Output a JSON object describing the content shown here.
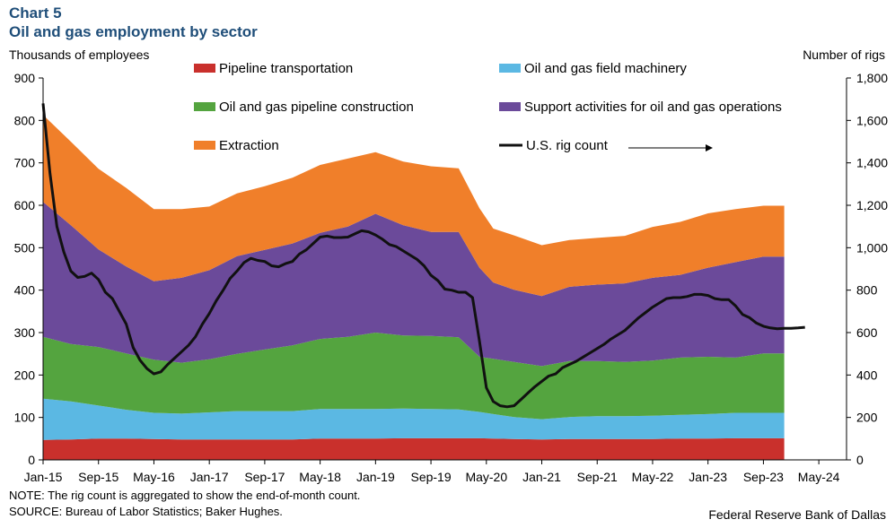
{
  "header": {
    "chart_number": "Chart 5",
    "title": "Oil and gas employment by sector"
  },
  "footer": {
    "note": "NOTE: The rig count is aggregated to show the end-of-month count.",
    "source": "SOURCE: Bureau of Labor Statistics; Baker Hughes.",
    "credit": "Federal Reserve Bank of Dallas"
  },
  "chart_data": {
    "type": "area",
    "stacked": true,
    "left_axis_label": "Thousands of employees",
    "right_axis_label": "Number of rigs",
    "ylim_left": [
      0,
      900
    ],
    "yticks_left": [
      "0",
      "100",
      "200",
      "300",
      "400",
      "500",
      "600",
      "700",
      "800",
      "900"
    ],
    "ylim_right": [
      0,
      1800
    ],
    "yticks_right": [
      "0",
      "200",
      "400",
      "600",
      "800",
      "1,000",
      "1,200",
      "1,400",
      "1,600",
      "1,800"
    ],
    "x_tick_labels": [
      "Jan-15",
      "Sep-15",
      "May-16",
      "Jan-17",
      "Sep-17",
      "May-18",
      "Jan-19",
      "Sep-19",
      "May-20",
      "Jan-21",
      "Sep-21",
      "May-22",
      "Jan-23",
      "Sep-23",
      "May-24"
    ],
    "months": [
      "Jan-15",
      "May-15",
      "Sep-15",
      "Jan-16",
      "May-16",
      "Sep-16",
      "Jan-17",
      "May-17",
      "Sep-17",
      "Jan-18",
      "May-18",
      "Sep-18",
      "Jan-19",
      "May-19",
      "Sep-19",
      "Jan-20",
      "Apr-20",
      "Jun-20",
      "Sep-20",
      "Jan-21",
      "May-21",
      "Sep-21",
      "Jan-22",
      "May-22",
      "Sep-22",
      "Jan-23",
      "May-23",
      "Sep-23",
      "Dec-23"
    ],
    "series": [
      {
        "name": "Pipeline transportation",
        "color": "#c9302c",
        "values": [
          47,
          48,
          50,
          50,
          49,
          48,
          48,
          48,
          48,
          48,
          50,
          50,
          50,
          51,
          51,
          51,
          51,
          50,
          49,
          48,
          49,
          49,
          49,
          49,
          50,
          50,
          51,
          51,
          51
        ]
      },
      {
        "name": "Oil and gas field machinery",
        "color": "#5bb8e3",
        "values": [
          97,
          90,
          78,
          68,
          62,
          61,
          64,
          67,
          67,
          67,
          70,
          70,
          70,
          70,
          69,
          68,
          62,
          58,
          52,
          48,
          52,
          54,
          54,
          55,
          56,
          58,
          60,
          60,
          60
        ]
      },
      {
        "name": "Oil and gas pipeline construction",
        "color": "#54a43f",
        "values": [
          146,
          135,
          138,
          133,
          125,
          120,
          125,
          135,
          145,
          155,
          165,
          170,
          180,
          172,
          172,
          170,
          130,
          130,
          130,
          125,
          132,
          130,
          128,
          130,
          135,
          135,
          130,
          140,
          140
        ]
      },
      {
        "name": "Support activities for oil and gas operations",
        "color": "#6b4a9a",
        "values": [
          318,
          280,
          230,
          205,
          185,
          200,
          210,
          230,
          235,
          240,
          250,
          260,
          280,
          260,
          245,
          248,
          210,
          180,
          170,
          165,
          175,
          180,
          185,
          195,
          195,
          210,
          225,
          228,
          228
        ]
      },
      {
        "name": "Extraction",
        "color": "#f07f2a",
        "values": [
          205,
          197,
          190,
          185,
          170,
          162,
          150,
          148,
          150,
          155,
          160,
          160,
          145,
          150,
          155,
          150,
          140,
          127,
          128,
          120,
          110,
          110,
          112,
          120,
          125,
          128,
          125,
          120,
          120
        ]
      }
    ],
    "line_series": {
      "name": "U.S. rig count",
      "color": "#111111",
      "axis": "right",
      "points": [
        [
          "Jan-15",
          1680
        ],
        [
          "Feb-15",
          1350
        ],
        [
          "Mar-15",
          1100
        ],
        [
          "Apr-15",
          980
        ],
        [
          "May-15",
          890
        ],
        [
          "Jun-15",
          860
        ],
        [
          "Jul-15",
          865
        ],
        [
          "Aug-15",
          880
        ],
        [
          "Sep-15",
          850
        ],
        [
          "Oct-15",
          790
        ],
        [
          "Nov-15",
          760
        ],
        [
          "Dec-15",
          700
        ],
        [
          "Jan-16",
          640
        ],
        [
          "Feb-16",
          530
        ],
        [
          "Mar-16",
          470
        ],
        [
          "Apr-16",
          430
        ],
        [
          "May-16",
          405
        ],
        [
          "Jun-16",
          415
        ],
        [
          "Jul-16",
          450
        ],
        [
          "Aug-16",
          480
        ],
        [
          "Sep-16",
          510
        ],
        [
          "Oct-16",
          540
        ],
        [
          "Nov-16",
          580
        ],
        [
          "Dec-16",
          640
        ],
        [
          "Jan-17",
          690
        ],
        [
          "Feb-17",
          750
        ],
        [
          "Mar-17",
          800
        ],
        [
          "Apr-17",
          855
        ],
        [
          "May-17",
          890
        ],
        [
          "Jun-17",
          930
        ],
        [
          "Jul-17",
          950
        ],
        [
          "Aug-17",
          940
        ],
        [
          "Sep-17",
          935
        ],
        [
          "Oct-17",
          915
        ],
        [
          "Nov-17",
          910
        ],
        [
          "Dec-17",
          925
        ],
        [
          "Jan-18",
          935
        ],
        [
          "Feb-18",
          970
        ],
        [
          "Mar-18",
          990
        ],
        [
          "Apr-18",
          1020
        ],
        [
          "May-18",
          1050
        ],
        [
          "Jun-18",
          1055
        ],
        [
          "Jul-18",
          1048
        ],
        [
          "Aug-18",
          1048
        ],
        [
          "Sep-18",
          1050
        ],
        [
          "Oct-18",
          1065
        ],
        [
          "Nov-18",
          1080
        ],
        [
          "Dec-18",
          1075
        ],
        [
          "Jan-19",
          1060
        ],
        [
          "Feb-19",
          1040
        ],
        [
          "Mar-19",
          1015
        ],
        [
          "Apr-19",
          1005
        ],
        [
          "May-19",
          985
        ],
        [
          "Jun-19",
          965
        ],
        [
          "Jul-19",
          945
        ],
        [
          "Aug-19",
          915
        ],
        [
          "Sep-19",
          870
        ],
        [
          "Oct-19",
          845
        ],
        [
          "Nov-19",
          805
        ],
        [
          "Dec-19",
          800
        ],
        [
          "Jan-20",
          790
        ],
        [
          "Feb-20",
          790
        ],
        [
          "Mar-20",
          765
        ],
        [
          "Apr-20",
          560
        ],
        [
          "May-20",
          340
        ],
        [
          "Jun-20",
          275
        ],
        [
          "Jul-20",
          255
        ],
        [
          "Aug-20",
          250
        ],
        [
          "Sep-20",
          255
        ],
        [
          "Oct-20",
          285
        ],
        [
          "Nov-20",
          315
        ],
        [
          "Dec-20",
          345
        ],
        [
          "Jan-21",
          370
        ],
        [
          "Feb-21",
          395
        ],
        [
          "Mar-21",
          405
        ],
        [
          "Apr-21",
          435
        ],
        [
          "May-21",
          450
        ],
        [
          "Jun-21",
          465
        ],
        [
          "Jul-21",
          485
        ],
        [
          "Aug-21",
          505
        ],
        [
          "Sep-21",
          525
        ],
        [
          "Oct-21",
          545
        ],
        [
          "Nov-21",
          570
        ],
        [
          "Dec-21",
          590
        ],
        [
          "Jan-22",
          610
        ],
        [
          "Feb-22",
          640
        ],
        [
          "Mar-22",
          670
        ],
        [
          "Apr-22",
          695
        ],
        [
          "May-22",
          720
        ],
        [
          "Jun-22",
          740
        ],
        [
          "Jul-22",
          760
        ],
        [
          "Aug-22",
          765
        ],
        [
          "Sep-22",
          765
        ],
        [
          "Oct-22",
          770
        ],
        [
          "Nov-22",
          780
        ],
        [
          "Dec-22",
          780
        ],
        [
          "Jan-23",
          775
        ],
        [
          "Feb-23",
          760
        ],
        [
          "Mar-23",
          755
        ],
        [
          "Apr-23",
          755
        ],
        [
          "May-23",
          725
        ],
        [
          "Jun-23",
          685
        ],
        [
          "Jul-23",
          670
        ],
        [
          "Aug-23",
          645
        ],
        [
          "Sep-23",
          630
        ],
        [
          "Oct-23",
          622
        ],
        [
          "Nov-23",
          618
        ],
        [
          "Dec-23",
          620
        ],
        [
          "Jan-24",
          620
        ],
        [
          "Feb-24",
          622
        ],
        [
          "Mar-24",
          625
        ]
      ]
    },
    "legend_arrow": "right"
  }
}
